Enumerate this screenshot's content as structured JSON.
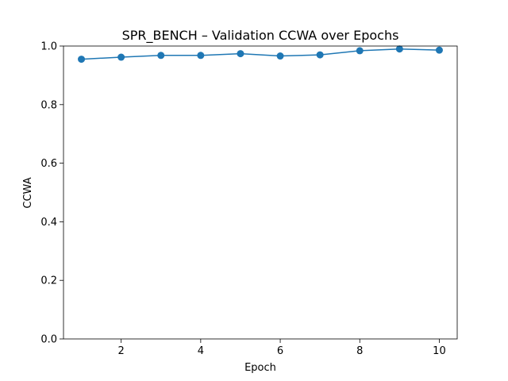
{
  "chart_data": {
    "type": "line",
    "title": "SPR_BENCH – Validation CCWA over Epochs",
    "xlabel": "Epoch",
    "ylabel": "CCWA",
    "x": [
      1,
      2,
      3,
      4,
      5,
      6,
      7,
      8,
      9,
      10
    ],
    "series": [
      {
        "values": [
          0.955,
          0.962,
          0.968,
          0.968,
          0.974,
          0.966,
          0.97,
          0.984,
          0.99,
          0.986
        ],
        "color": "#1f77b4",
        "marker": "circle"
      }
    ],
    "xlim": [
      0.55,
      10.45
    ],
    "ylim": [
      0.0,
      1.0
    ],
    "xticks": [
      2,
      4,
      6,
      8,
      10
    ],
    "yticks": [
      0.0,
      0.2,
      0.4,
      0.6,
      0.8,
      1.0
    ],
    "ytick_labels": [
      "0.0",
      "0.2",
      "0.4",
      "0.6",
      "0.8",
      "1.0"
    ],
    "grid": false,
    "legend": "none"
  }
}
